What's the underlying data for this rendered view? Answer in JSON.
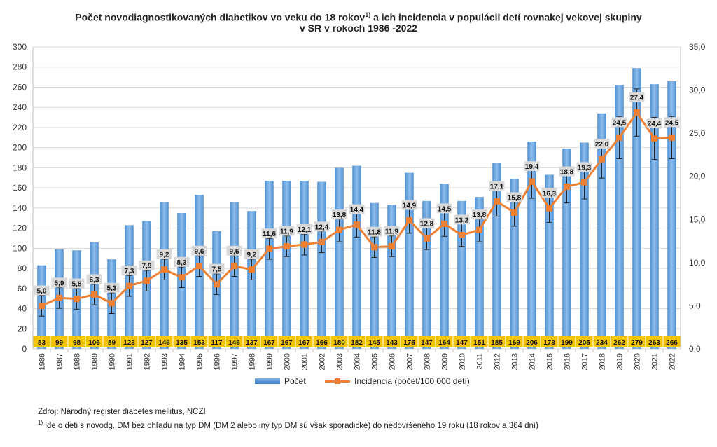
{
  "title_line1": "Počet novodiagnostikovaných diabetikov vo veku do 18 rokov",
  "title_sup": "1)",
  "title_line1_rest": " a ich incidencia v populácii detí rovnakej vekovej skupiny",
  "title_line2": "v SR v rokoch 1986 -2022",
  "source": "Zdroj: Národný register diabetes mellitus, NCZI",
  "footnote_sup": "1)",
  "footnote_text": " ide o deti s novodg. DM bez ohľadu na typ DM  (DM 2 alebo iný typ DM sú však sporadické) do nedovŕšeného 19 roku (18 rokov a 364 dní)",
  "colors": {
    "bar": "#5b9bd5",
    "line": "#ee8033",
    "count_label_bg": "#f5c400",
    "incidence_label_bg": "#d9d9d9"
  },
  "chart_data": {
    "type": "bar",
    "categories": [
      "1986",
      "1987",
      "1988",
      "1989",
      "1990",
      "1991",
      "1992",
      "1993",
      "1994",
      "1995",
      "1996",
      "1997",
      "1998",
      "1999",
      "2000",
      "2001",
      "2002",
      "2003",
      "2004",
      "2005",
      "2006",
      "2007",
      "2008",
      "2009",
      "2010",
      "2011",
      "2012",
      "2013",
      "2014",
      "2015",
      "2016",
      "2017",
      "2018",
      "2019",
      "2020",
      "2021",
      "2022"
    ],
    "series": [
      {
        "name": "Počet",
        "type": "bar",
        "axis": "left",
        "values": [
          83,
          99,
          98,
          106,
          89,
          123,
          127,
          146,
          135,
          153,
          117,
          146,
          137,
          167,
          167,
          167,
          166,
          180,
          182,
          145,
          143,
          175,
          147,
          164,
          147,
          151,
          185,
          169,
          206,
          173,
          199,
          205,
          234,
          262,
          279,
          263,
          266
        ],
        "labels": [
          "83",
          "99",
          "98",
          "106",
          "89",
          "123",
          "127",
          "146",
          "135",
          "153",
          "117",
          "146",
          "137",
          "167",
          "167",
          "167",
          "166",
          "180",
          "182",
          "145",
          "143",
          "175",
          "147",
          "164",
          "147",
          "151",
          "185",
          "169",
          "206",
          "173",
          "199",
          "205",
          "234",
          "262",
          "279",
          "263",
          "266"
        ]
      },
      {
        "name": "Incidencia (počet/100 000 detí)",
        "type": "line",
        "axis": "right",
        "values": [
          5.0,
          5.9,
          5.8,
          6.3,
          5.3,
          7.3,
          7.9,
          9.2,
          8.3,
          9.6,
          7.5,
          9.6,
          9.2,
          11.6,
          11.9,
          12.1,
          12.4,
          13.8,
          14.4,
          11.8,
          11.9,
          14.9,
          12.8,
          14.5,
          13.2,
          13.8,
          17.1,
          15.8,
          19.4,
          16.3,
          18.8,
          19.3,
          22.0,
          24.5,
          27.4,
          24.4,
          24.5
        ],
        "labels": [
          "5,0",
          "5,9",
          "5,8",
          "6,3",
          "5,3",
          "7,3",
          "7,9",
          "9,2",
          "8,3",
          "9,6",
          "7,5",
          "9,6",
          "9,2",
          "11,6",
          "11,9",
          "12,1",
          "12,4",
          "13,8",
          "14,4",
          "11,8",
          "11,9",
          "14,9",
          "12,8",
          "14,5",
          "13,2",
          "13,8",
          "17,1",
          "15,8",
          "19,4",
          "16,3",
          "18,8",
          "19,3",
          "22,0",
          "24,5",
          "27,4",
          "24,4",
          "24,5"
        ]
      }
    ],
    "ylim_left": [
      0,
      300
    ],
    "ylim_right": [
      0,
      35
    ],
    "y_ticks_left": [
      "0",
      "20",
      "40",
      "60",
      "80",
      "100",
      "120",
      "140",
      "160",
      "180",
      "200",
      "220",
      "240",
      "260",
      "280",
      "300"
    ],
    "y_ticks_right": [
      "0,0",
      "5,0",
      "10,0",
      "15,0",
      "20,0",
      "25,0",
      "30,0",
      "35,0"
    ],
    "grid": true,
    "error_bars": true,
    "legend_position": "bottom"
  }
}
